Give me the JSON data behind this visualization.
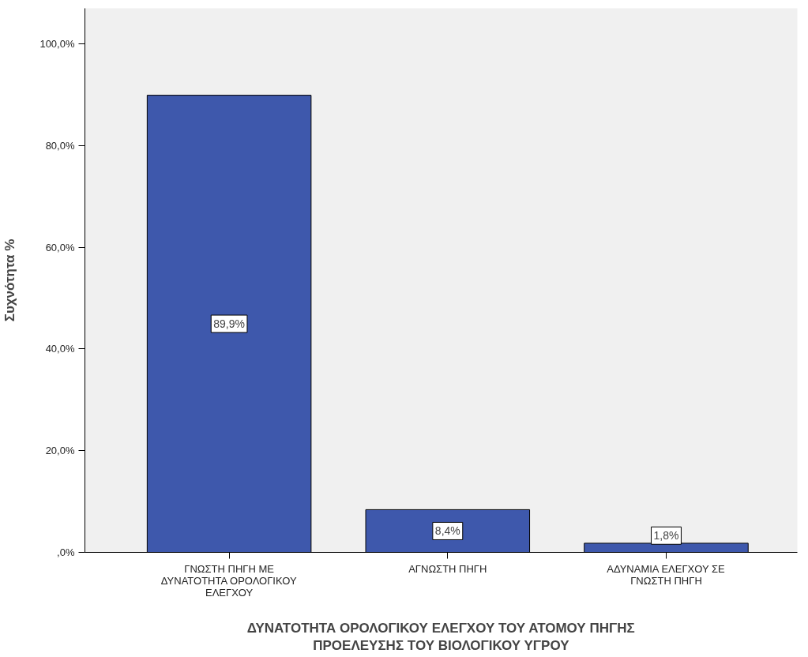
{
  "chart_data": {
    "type": "bar",
    "categories": [
      "ΓΝΩΣΤΗ ΠΗΓΗ ΜΕ ΔΥΝΑΤΟΤΗΤΑ ΟΡΟΛΟΓΙΚΟΥ ΕΛΕΓΧΟΥ",
      "ΑΓΝΩΣΤΗ ΠΗΓΗ",
      "ΑΔΥΝΑΜΙΑ ΕΛΕΓΧΟΥ ΣΕ ΓΝΩΣΤΗ ΠΗΓΗ"
    ],
    "values": [
      89.9,
      8.4,
      1.8
    ],
    "value_labels": [
      "89,9%",
      "8,4%",
      "1,8%"
    ],
    "color": "#3e58ac",
    "xlabel": "ΔΥΝΑΤΟΤΗΤΑ ΟΡΟΛΟΓΙΚΟΥ ΕΛΕΓΧΟΥ ΤΟΥ ΑΤΟΜΟΥ ΠΗΓΗΣ ΠΡΟΕΛΕΥΣΗΣ ΤΟΥ ΒΙΟΛΟΓΙΚΟΥ ΥΓΡΟΥ",
    "ylabel": "Συχνότητα %",
    "ylim": [
      0,
      107
    ],
    "yticks": [
      {
        "value": 0,
        "label": ",0%"
      },
      {
        "value": 20,
        "label": "20,0%"
      },
      {
        "value": 40,
        "label": "40,0%"
      },
      {
        "value": 60,
        "label": "60,0%"
      },
      {
        "value": 80,
        "label": "80,0%"
      },
      {
        "value": 100,
        "label": "100,0%"
      }
    ],
    "grid": false
  }
}
